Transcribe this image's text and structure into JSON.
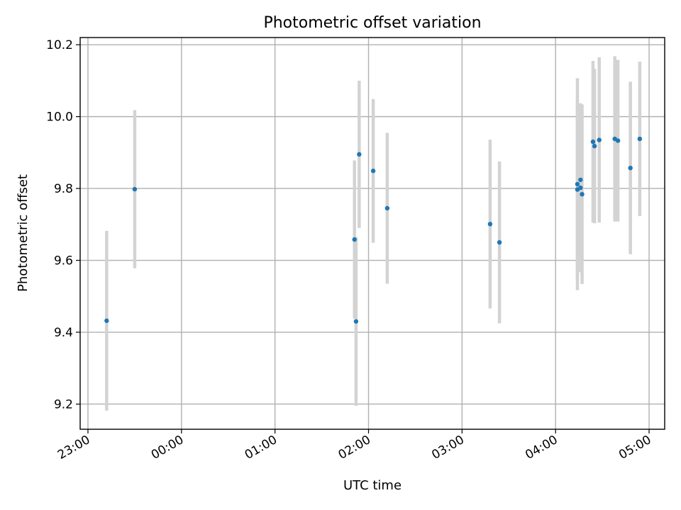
{
  "chart_data": {
    "type": "scatter",
    "title": "Photometric offset variation",
    "xlabel": "UTC time",
    "ylabel": "Photometric offset",
    "x_ticks": [
      "23:00",
      "00:00",
      "01:00",
      "02:00",
      "03:00",
      "04:00",
      "05:00"
    ],
    "y_ticks": [
      "9.2",
      "9.4",
      "9.6",
      "9.8",
      "10.0",
      "10.2"
    ],
    "xlim": [
      "22:55",
      "05:10"
    ],
    "ylim": [
      9.13,
      10.22
    ],
    "grid": true,
    "marker_color": "#1f77b4",
    "errorbar_color": "#d3d3d3",
    "points": [
      {
        "time": "23:12",
        "y": 9.432,
        "err": 0.25
      },
      {
        "time": "23:30",
        "y": 9.798,
        "err": 0.22
      },
      {
        "time": "01:51",
        "y": 9.658,
        "err": 0.22
      },
      {
        "time": "01:52",
        "y": 9.43,
        "err": 0.235
      },
      {
        "time": "01:54",
        "y": 9.895,
        "err": 0.205
      },
      {
        "time": "02:03",
        "y": 9.849,
        "err": 0.2
      },
      {
        "time": "02:12",
        "y": 9.745,
        "err": 0.21
      },
      {
        "time": "03:18",
        "y": 9.701,
        "err": 0.235
      },
      {
        "time": "03:24",
        "y": 9.65,
        "err": 0.225
      },
      {
        "time": "04:14",
        "y": 9.812,
        "err": 0.295
      },
      {
        "time": "04:14",
        "y": 9.797,
        "err": 0.25
      },
      {
        "time": "04:16",
        "y": 9.824,
        "err": 0.21
      },
      {
        "time": "04:16",
        "y": 9.802,
        "err": 0.235
      },
      {
        "time": "04:17",
        "y": 9.784,
        "err": 0.25
      },
      {
        "time": "04:24",
        "y": 9.93,
        "err": 0.225
      },
      {
        "time": "04:25",
        "y": 9.918,
        "err": 0.215
      },
      {
        "time": "04:28",
        "y": 9.935,
        "err": 0.23
      },
      {
        "time": "04:38",
        "y": 9.938,
        "err": 0.23
      },
      {
        "time": "04:40",
        "y": 9.933,
        "err": 0.225
      },
      {
        "time": "04:48",
        "y": 9.857,
        "err": 0.24
      },
      {
        "time": "04:54",
        "y": 9.938,
        "err": 0.215
      }
    ]
  }
}
